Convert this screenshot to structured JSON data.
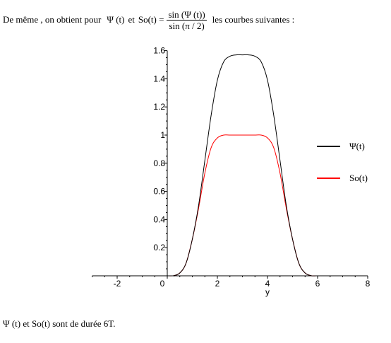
{
  "intro": {
    "text_before": "De même , on obtient pour",
    "psi_label": "Ψ (t)",
    "et": "et",
    "so_label": "So(t) =",
    "frac_num": "sin (Ψ (t))",
    "frac_den": "sin (π / 2)",
    "text_after": "les courbes suivantes  :"
  },
  "footer": {
    "text": "Ψ (t)  et So(t)  sont de durée  6T."
  },
  "colors": {
    "psi": "#000000",
    "so": "#ff0000"
  },
  "chart_data": {
    "type": "line",
    "xlabel": "y",
    "ylabel": "",
    "xlim": [
      -3,
      8
    ],
    "ylim": [
      0,
      1.6
    ],
    "xticks": [
      -2,
      0,
      2,
      4,
      6,
      8
    ],
    "yticks": [
      0.2,
      0.4,
      0.6,
      0.8,
      1,
      1.2,
      1.4,
      1.6
    ],
    "xtick_labels": [
      "-2",
      "0",
      "2",
      "4",
      "6",
      "8"
    ],
    "ytick_labels": [
      "0.2",
      "0.4",
      "0.6",
      "0.8",
      "1",
      "1.2",
      "1.4",
      "1.6"
    ],
    "legend_position": "right",
    "series": [
      {
        "name": "Ψ(t)",
        "color": "#000000",
        "x": [
          -3,
          0,
          0.25,
          0.5,
          0.75,
          1.0,
          1.25,
          1.5,
          1.75,
          2.0,
          2.25,
          2.5,
          2.75,
          3.0,
          3.25,
          3.5,
          3.75,
          4.0,
          4.25,
          4.5,
          4.75,
          5.0,
          5.25,
          5.5,
          5.75,
          6.0,
          8
        ],
        "values": [
          0,
          0,
          0.001,
          0.02,
          0.09,
          0.26,
          0.5,
          0.82,
          1.14,
          1.39,
          1.52,
          1.56,
          1.57,
          1.57,
          1.57,
          1.56,
          1.52,
          1.39,
          1.14,
          0.82,
          0.5,
          0.26,
          0.09,
          0.02,
          0.001,
          0,
          0
        ]
      },
      {
        "name": "So(t)",
        "color": "#ff0000",
        "x": [
          0,
          0.25,
          0.5,
          0.75,
          1.0,
          1.25,
          1.5,
          1.75,
          2.0,
          2.25,
          2.5,
          2.75,
          3.0,
          3.25,
          3.5,
          3.75,
          4.0,
          4.25,
          4.5,
          4.75,
          5.0,
          5.25,
          5.5,
          5.75,
          6.0
        ],
        "values": [
          0,
          0.001,
          0.02,
          0.09,
          0.26,
          0.48,
          0.73,
          0.91,
          0.98,
          1.0,
          1.0,
          1.0,
          1.0,
          1.0,
          1.0,
          1.0,
          0.98,
          0.91,
          0.73,
          0.48,
          0.26,
          0.09,
          0.02,
          0.001,
          0
        ]
      }
    ]
  }
}
